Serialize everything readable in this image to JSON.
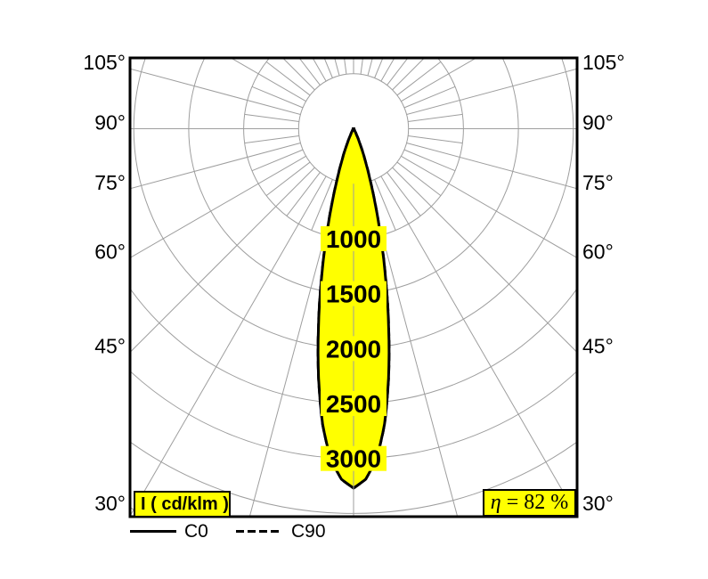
{
  "chart_data": {
    "type": "polar_intensity_diagram",
    "quantity_label": "I ( cd/klm )",
    "efficiency": {
      "symbol": "η",
      "rest": " = 82 %",
      "full": "η = 82 %"
    },
    "legend": [
      {
        "label": "C0",
        "line": "solid"
      },
      {
        "label": "C90",
        "line": "dashed"
      }
    ],
    "angle_tick_labels_deg": [
      105,
      90,
      75,
      60,
      45,
      30
    ],
    "angle_labels_both_sides": true,
    "ring_step": 500,
    "ring_count": 8,
    "ring_value_labels": [
      1000,
      1500,
      2000,
      2500,
      3000
    ],
    "grid": {
      "major_ray_step_deg": 15,
      "minor_ray_step_deg": 7.5
    },
    "peak_intensity_cd_klm": 3270,
    "series": [
      {
        "name": "C0",
        "style": "solid",
        "theta_deg": [
          0,
          2,
          4,
          6,
          8,
          10,
          12,
          14,
          16,
          18,
          20,
          23,
          26,
          30,
          40,
          60,
          90
        ],
        "i_cd_klm": [
          3270,
          3190,
          3010,
          2700,
          2290,
          1840,
          1410,
          1030,
          720,
          480,
          310,
          150,
          60,
          20,
          5,
          0,
          0
        ]
      },
      {
        "name": "C90",
        "style": "dashed",
        "theta_deg": [
          0,
          2,
          4,
          6,
          8,
          10,
          12,
          14,
          16,
          18,
          20,
          23,
          26,
          30,
          40,
          60,
          90
        ],
        "i_cd_klm": [
          3270,
          3190,
          3010,
          2700,
          2290,
          1840,
          1410,
          1030,
          720,
          480,
          310,
          150,
          60,
          20,
          5,
          0,
          0
        ]
      }
    ],
    "colors": {
      "beam_fill": "#ffff00",
      "label_bg": "#ffff00",
      "grid_line": "#9e9e9e",
      "outline": "#000000",
      "text": "#000000"
    }
  }
}
